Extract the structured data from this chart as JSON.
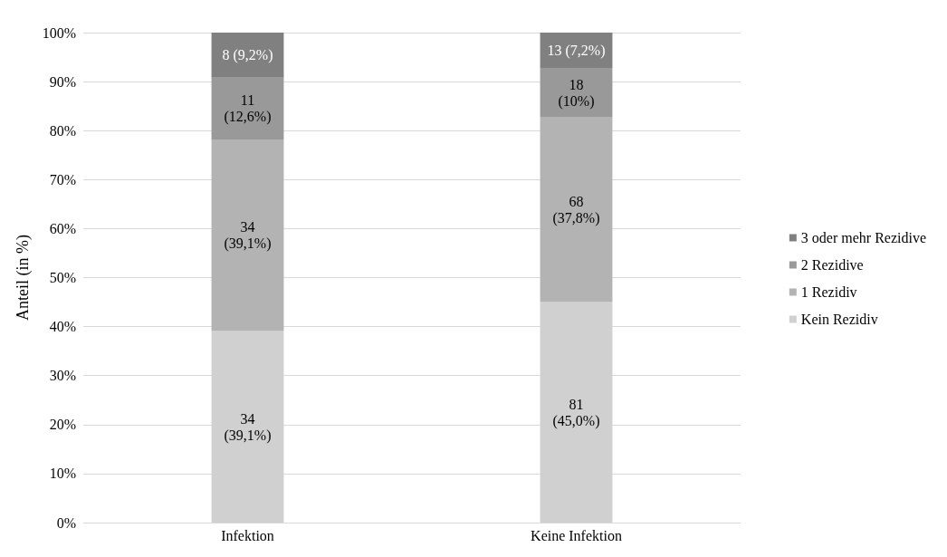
{
  "chart_data": {
    "type": "bar",
    "stacked": true,
    "ylabel": "Anteil (in %)",
    "categories": [
      "Infektion",
      "Keine Infektion"
    ],
    "series": [
      {
        "name": "Kein Rezidiv",
        "color": "#d0d0d0",
        "values": [
          39.1,
          45.0
        ],
        "value_labels": [
          "34\n(39,1%)",
          "81\n(45,0%)"
        ]
      },
      {
        "name": "1 Rezidiv",
        "color": "#b3b3b3",
        "values": [
          39.1,
          37.8
        ],
        "value_labels": [
          "34\n(39,1%)",
          "68\n(37,8%)"
        ]
      },
      {
        "name": "2 Rezidive",
        "color": "#999999",
        "values": [
          12.6,
          10.0
        ],
        "value_labels": [
          "11\n(12,6%)",
          "18\n(10%)"
        ]
      },
      {
        "name": "3 oder mehr Rezidive",
        "color": "#808080",
        "values": [
          9.2,
          7.2
        ],
        "value_labels": [
          "8 (9,2%)",
          "13 (7,2%)"
        ]
      }
    ],
    "ylim": [
      0,
      100
    ],
    "yticks": [
      {
        "value": 0,
        "label": "0%"
      },
      {
        "value": 10,
        "label": "10%"
      },
      {
        "value": 20,
        "label": "20%"
      },
      {
        "value": 30,
        "label": "30%"
      },
      {
        "value": 40,
        "label": "40%"
      },
      {
        "value": 50,
        "label": "50%"
      },
      {
        "value": 60,
        "label": "60%"
      },
      {
        "value": 70,
        "label": "70%"
      },
      {
        "value": 80,
        "label": "80%"
      },
      {
        "value": 90,
        "label": "90%"
      },
      {
        "value": 100,
        "label": "100%"
      }
    ],
    "grid": "y",
    "legend": "right"
  }
}
